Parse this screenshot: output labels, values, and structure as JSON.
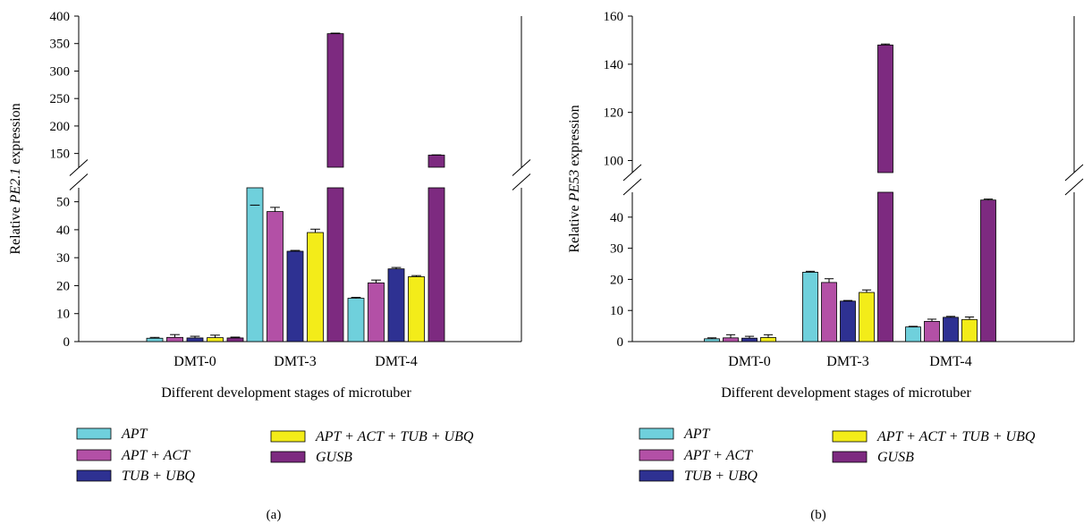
{
  "chart_data": [
    {
      "type": "bar",
      "panel_label": "(a)",
      "xlabel": "Different development stages of microtuber",
      "ylabel_prefix": "Relative ",
      "ylabel_gene": "PE2.1",
      "ylabel_suffix": " expression",
      "categories": [
        "DMT-0",
        "DMT-3",
        "DMT-4"
      ],
      "axis_break": true,
      "lower_range": [
        0,
        55
      ],
      "upper_range": [
        125,
        400
      ],
      "lower_ticks": [
        0,
        10,
        20,
        30,
        40,
        50
      ],
      "upper_ticks": [
        150,
        200,
        250,
        300,
        350,
        400
      ],
      "series": [
        {
          "name": "APT",
          "values": [
            1.2,
            55.5,
            15.5
          ],
          "errors": [
            0.3,
            0.5,
            0.3
          ]
        },
        {
          "name": "APT + ACT",
          "values": [
            1.5,
            46.5,
            21.0
          ],
          "errors": [
            1.0,
            1.5,
            1.0
          ]
        },
        {
          "name": "TUB + UBQ",
          "values": [
            1.3,
            32.3,
            26.0
          ],
          "errors": [
            0.6,
            0.3,
            0.5
          ]
        },
        {
          "name": "APT + ACT + TUB + UBQ",
          "values": [
            1.4,
            39.0,
            23.2
          ],
          "errors": [
            0.9,
            1.2,
            0.4
          ]
        },
        {
          "name": "GUSB",
          "values": [
            1.3,
            368,
            147
          ],
          "errors": [
            0.3,
            1.0,
            0.5
          ]
        }
      ]
    },
    {
      "type": "bar",
      "panel_label": "(b)",
      "xlabel": "Different development stages of microtuber",
      "ylabel_prefix": "Relative ",
      "ylabel_gene": "PE53",
      "ylabel_suffix": " expression",
      "categories": [
        "DMT-0",
        "DMT-3",
        "DMT-4"
      ],
      "axis_break": true,
      "lower_range": [
        0,
        48
      ],
      "upper_range": [
        95,
        160
      ],
      "lower_ticks": [
        0,
        10,
        20,
        30,
        40
      ],
      "upper_ticks": [
        100,
        120,
        140,
        160
      ],
      "series": [
        {
          "name": "APT",
          "values": [
            0.9,
            22.3,
            4.7
          ],
          "errors": [
            0.3,
            0.3,
            0.2
          ]
        },
        {
          "name": "APT + ACT",
          "values": [
            1.2,
            19.0,
            6.5
          ],
          "errors": [
            1.0,
            1.2,
            0.7
          ]
        },
        {
          "name": "TUB + UBQ",
          "values": [
            1.1,
            13.0,
            7.8
          ],
          "errors": [
            0.6,
            0.2,
            0.3
          ]
        },
        {
          "name": "APT + ACT + TUB + UBQ",
          "values": [
            1.3,
            15.8,
            7.1
          ],
          "errors": [
            0.9,
            0.8,
            0.8
          ]
        },
        {
          "name": "GUSB",
          "values": [
            null,
            148,
            45.5
          ],
          "errors": [
            null,
            0.4,
            0.3
          ]
        }
      ]
    }
  ],
  "colors": {
    "APT": "#6fd0dc",
    "APT + ACT": "#b350a6",
    "TUB + UBQ": "#2e3192",
    "APT + ACT + TUB + UBQ": "#f3ec19",
    "GUSB": "#7d2a80"
  }
}
